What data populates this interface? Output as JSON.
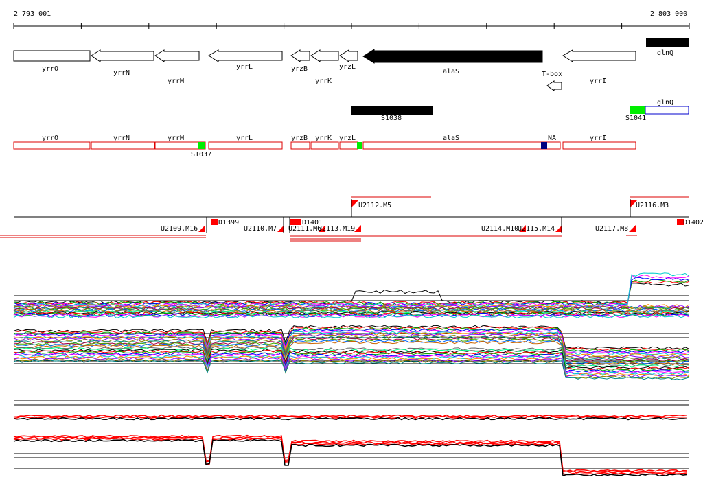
{
  "coordinates": {
    "start": "2 793 001",
    "end": "2 803 000"
  },
  "annotated_genes": [
    {
      "name": "yrrO",
      "strand": "+",
      "shaded": false
    },
    {
      "name": "yrrN",
      "strand": "-",
      "shaded": false
    },
    {
      "name": "yrrM",
      "strand": "-",
      "shaded": false
    },
    {
      "name": "yrrL",
      "strand": "-",
      "shaded": false
    },
    {
      "name": "yrzB",
      "strand": "-",
      "shaded": false
    },
    {
      "name": "yrrK",
      "strand": "-",
      "shaded": false
    },
    {
      "name": "yrzL",
      "strand": "-",
      "shaded": false
    },
    {
      "name": "alaS",
      "strand": "-",
      "shaded": true
    },
    {
      "name": "T-box",
      "strand": "-",
      "shaded": false
    },
    {
      "name": "yrrI",
      "strand": "-",
      "shaded": false
    },
    {
      "name": "glnQ",
      "strand": "+",
      "shaded": true
    }
  ],
  "feature_labels": [
    {
      "name": "S1038",
      "color": "#000000"
    },
    {
      "name": "S1041",
      "color": "#00ee00"
    },
    {
      "name": "glnQ",
      "color": "#0000cc"
    },
    {
      "name": "S1037",
      "color": "#00ee00"
    },
    {
      "name": "NA",
      "color": "#000080"
    }
  ],
  "transcription_units": [
    "yrrO",
    "yrrN",
    "yrrM",
    "yrrL",
    "yrzB",
    "yrrK",
    "yrzL",
    "alaS",
    "NA",
    "yrrI"
  ],
  "upshifts": [
    "U2109.M16",
    "U2110.M7",
    "U2111.M6",
    "U2113.M19",
    "U2112.M5",
    "U2114.M10",
    "U2115.M14",
    "U2116.M3",
    "U2117.M8"
  ],
  "downshifts": [
    "D1399",
    "D1401",
    "D1402"
  ],
  "colors": {
    "gene_fill": "#000000",
    "tu_box": "#dd0000",
    "marker": "#ff0000",
    "green": "#00ee00",
    "blue": "#0000cc"
  }
}
